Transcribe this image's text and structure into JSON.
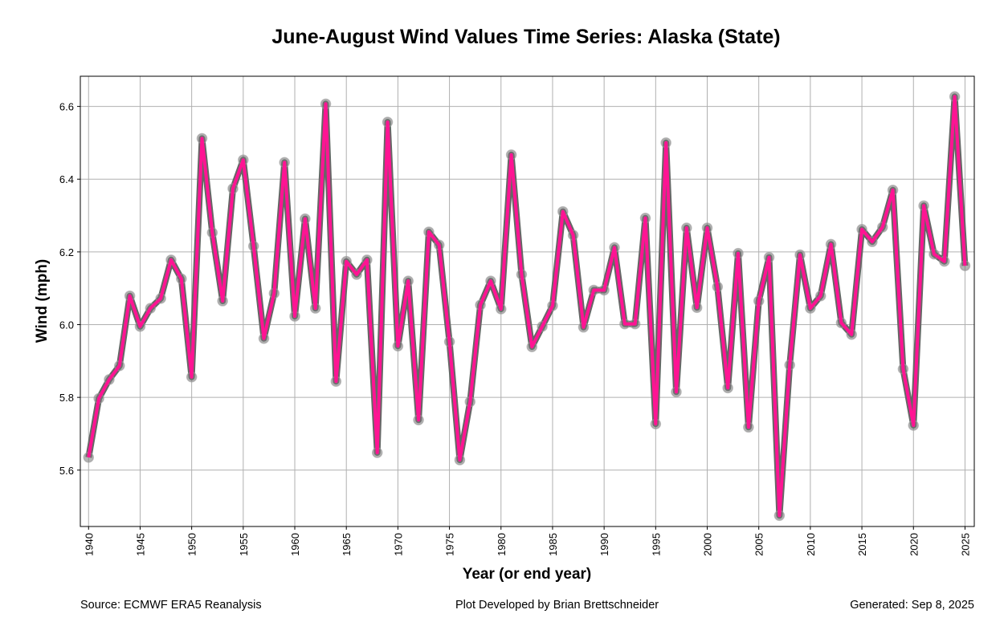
{
  "chart_data": {
    "type": "line",
    "title": "June-August Wind Values Time Series: Alaska (State)",
    "xlabel": "Year (or end year)",
    "ylabel": "Wind (mph)",
    "xlim": [
      1939.2,
      2025.9
    ],
    "ylim": [
      5.445,
      6.683
    ],
    "grid": true,
    "x_ticks": [
      1940,
      1945,
      1950,
      1955,
      1960,
      1965,
      1970,
      1975,
      1980,
      1985,
      1990,
      1995,
      2000,
      2005,
      2010,
      2015,
      2020,
      2025
    ],
    "y_ticks": [
      "5.6",
      "5.8",
      "6.0",
      "6.2",
      "6.4",
      "6.6"
    ],
    "series": [
      {
        "name": "Wind",
        "line_color": "#ff1493",
        "outline_color": "#666666",
        "x_start": 1940,
        "values": [
          5.635,
          5.797,
          5.849,
          5.887,
          6.079,
          5.995,
          6.045,
          6.072,
          6.178,
          6.126,
          5.856,
          6.512,
          6.253,
          6.065,
          6.374,
          6.453,
          6.216,
          5.962,
          6.086,
          6.446,
          6.023,
          6.291,
          6.045,
          6.607,
          5.844,
          6.174,
          6.138,
          6.178,
          5.648,
          6.557,
          5.941,
          6.12,
          5.738,
          6.255,
          6.219,
          5.953,
          5.628,
          5.788,
          6.054,
          6.12,
          6.043,
          6.467,
          6.138,
          5.939,
          5.995,
          6.052,
          6.311,
          6.246,
          5.993,
          6.095,
          6.095,
          6.212,
          6.002,
          6.002,
          6.293,
          5.727,
          6.5,
          5.815,
          6.266,
          6.047,
          6.266,
          6.104,
          5.826,
          6.196,
          5.718,
          6.065,
          6.185,
          5.475,
          5.889,
          6.192,
          6.045,
          6.079,
          6.221,
          6.005,
          5.973,
          6.262,
          6.228,
          6.268,
          6.37,
          5.878,
          5.723,
          6.327,
          6.194,
          6.174,
          6.627,
          6.162
        ]
      }
    ]
  },
  "footer": {
    "source": "Source: ECMWF ERA5 Reanalysis",
    "credit": "Plot Developed by Brian Brettschneider",
    "generated": "Generated: Sep 8, 2025"
  }
}
